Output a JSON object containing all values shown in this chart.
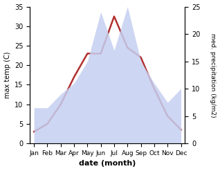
{
  "months": [
    "Jan",
    "Feb",
    "Mar",
    "Apr",
    "May",
    "Jun",
    "Jul",
    "Aug",
    "Sep",
    "Oct",
    "Nov",
    "Dec"
  ],
  "temperature": [
    3.0,
    5.0,
    10.0,
    17.0,
    23.0,
    23.0,
    32.5,
    24.5,
    22.0,
    14.0,
    7.0,
    3.5
  ],
  "precipitation": [
    6.5,
    6.5,
    9.0,
    11.0,
    15.0,
    24.0,
    17.0,
    25.0,
    15.0,
    11.0,
    7.5,
    10.0
  ],
  "temp_color": "#b03030",
  "precip_color": "#c5cff0",
  "precip_alpha": 0.85,
  "ylabel_left": "max temp (C)",
  "ylabel_right": "med. precipitation (kg/m2)",
  "xlabel": "date (month)",
  "ylim_left": [
    0,
    35
  ],
  "ylim_right": [
    0,
    25
  ],
  "yticks_left": [
    0,
    5,
    10,
    15,
    20,
    25,
    30,
    35
  ],
  "yticks_right": [
    0,
    5,
    10,
    15,
    20,
    25
  ],
  "background_color": "#ffffff",
  "temp_linewidth": 1.8
}
